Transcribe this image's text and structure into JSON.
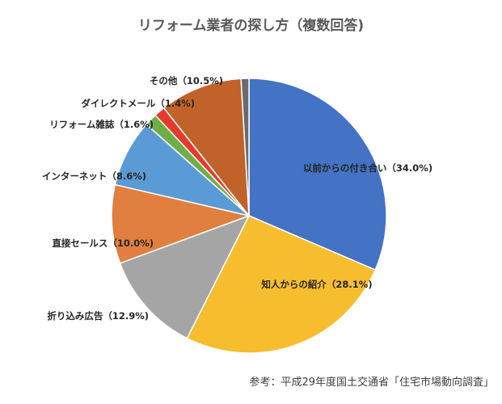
{
  "chart_data": {
    "type": "pie",
    "title": "リフォーム業者の探し方（複数回答)",
    "categories": [
      "以前からの付き合い（34.0%)",
      "知人からの紹介（28.1%)",
      "折り込み広告（12.9%)",
      "直接セールス（10.0%)",
      "インターネット（8.6%)",
      "リフォーム雑誌（1.6%)",
      "ダイレクトメール（1.4%)",
      "その他（10.5%)",
      ""
    ],
    "values": [
      34.0,
      28.1,
      12.9,
      10.0,
      8.6,
      1.6,
      1.4,
      10.5,
      1.0
    ],
    "colors": [
      "#4472c4",
      "#f6bd2f",
      "#a5a5a5",
      "#e07f3f",
      "#5b9bd5",
      "#70ad47",
      "#e63a2e",
      "#c0622a",
      "#6b6b6b"
    ],
    "legend": "none"
  },
  "source": "参考：平成29年度国土交通省「住宅市場動向調査」"
}
